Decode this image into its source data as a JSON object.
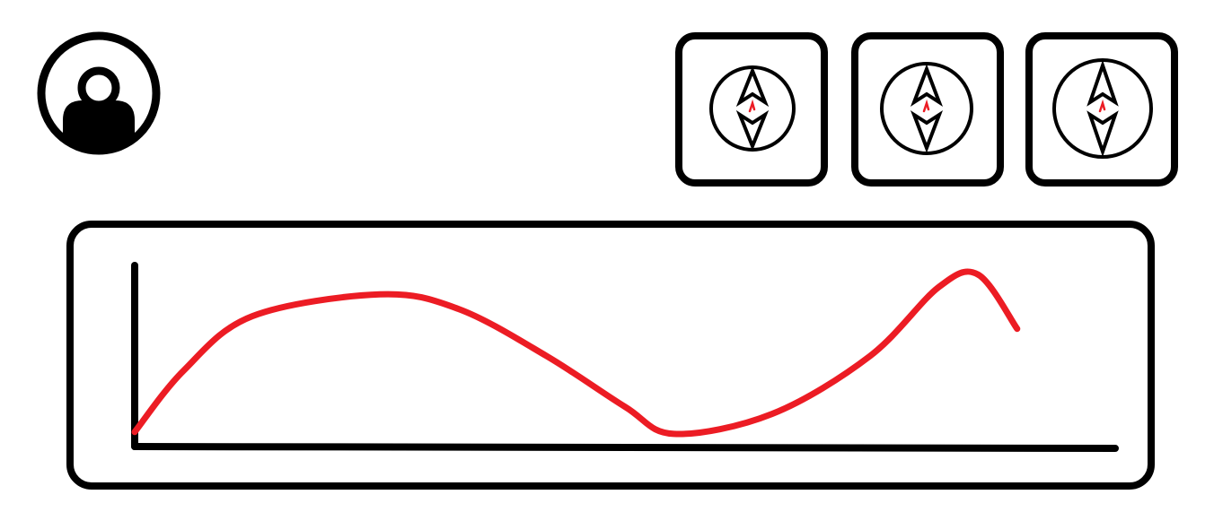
{
  "colors": {
    "outline": "#000000",
    "accent": "#ec1c24",
    "background": "#ffffff"
  },
  "avatar": {
    "icon": "user-silhouette-icon"
  },
  "compass_cards": [
    {
      "icon": "compass-icon"
    },
    {
      "icon": "compass-icon"
    },
    {
      "icon": "compass-icon"
    }
  ],
  "chart_data": {
    "type": "line",
    "title": "",
    "xlabel": "",
    "ylabel": "",
    "grid": false,
    "series": [
      {
        "values": [
          0.08,
          0.42,
          0.72,
          0.84,
          0.76,
          0.5,
          0.22,
          0.07,
          0.18,
          0.5,
          0.88,
          0.95,
          0.65
        ]
      }
    ],
    "x": [
      0,
      0.05,
      0.12,
      0.25,
      0.33,
      0.42,
      0.5,
      0.55,
      0.65,
      0.75,
      0.82,
      0.86,
      0.9
    ],
    "xlim": [
      0,
      1
    ],
    "ylim": [
      0,
      1
    ]
  }
}
